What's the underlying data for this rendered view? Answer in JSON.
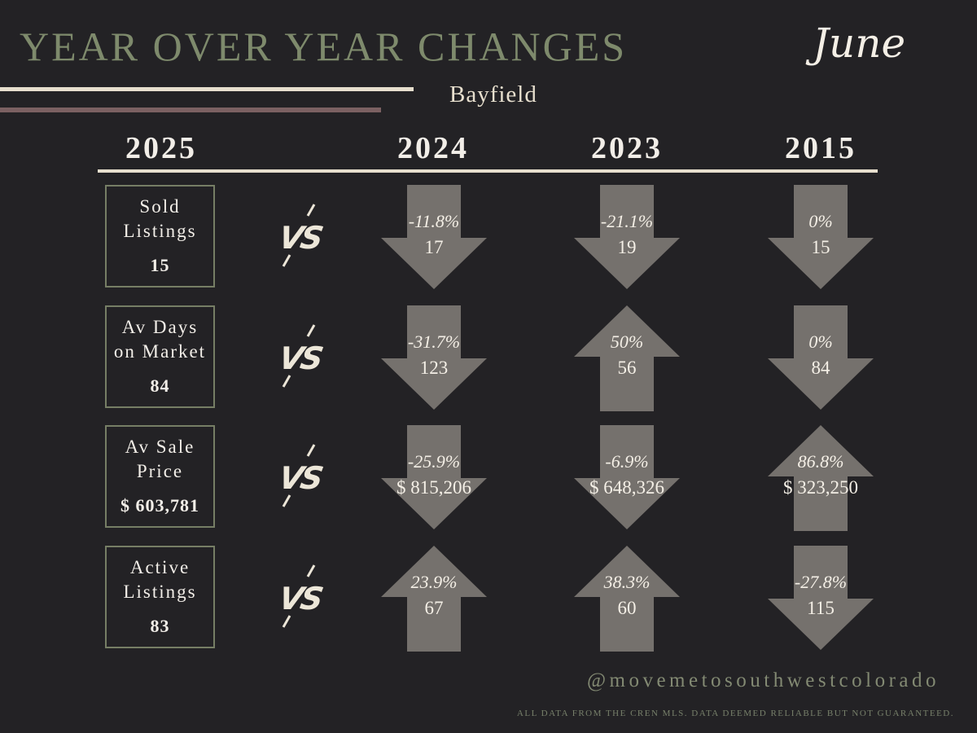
{
  "title": "YEAR OVER YEAR CHANGES",
  "month": "June",
  "location": "Bayfield",
  "colors": {
    "background": "#232225",
    "title": "#7e8a6c",
    "arrow": "#75716d",
    "cream": "#e7dfce",
    "mauve": "#7b6162"
  },
  "years": {
    "current": "2025",
    "comparisons": [
      "2024",
      "2023",
      "2015"
    ]
  },
  "vs_label": "VS",
  "rows": [
    {
      "label_lines": [
        "Sold",
        "Listings"
      ],
      "current_value": "15",
      "comparisons": [
        {
          "year": "2024",
          "change": "-11.8%",
          "value": "17",
          "direction": "down"
        },
        {
          "year": "2023",
          "change": "-21.1%",
          "value": "19",
          "direction": "down"
        },
        {
          "year": "2015",
          "change": "0%",
          "value": "15",
          "direction": "down"
        }
      ]
    },
    {
      "label_lines": [
        "Av Days",
        "on Market"
      ],
      "current_value": "84",
      "comparisons": [
        {
          "year": "2024",
          "change": "-31.7%",
          "value": "123",
          "direction": "down"
        },
        {
          "year": "2023",
          "change": "50%",
          "value": "56",
          "direction": "up"
        },
        {
          "year": "2015",
          "change": "0%",
          "value": "84",
          "direction": "down"
        }
      ]
    },
    {
      "label_lines": [
        "Av Sale",
        "Price"
      ],
      "current_value": "$ 603,781",
      "comparisons": [
        {
          "year": "2024",
          "change": "-25.9%",
          "value": "$ 815,206",
          "direction": "down"
        },
        {
          "year": "2023",
          "change": "-6.9%",
          "value": "$ 648,326",
          "direction": "down"
        },
        {
          "year": "2015",
          "change": "86.8%",
          "value": "$ 323,250",
          "direction": "up"
        }
      ]
    },
    {
      "label_lines": [
        "Active",
        "Listings"
      ],
      "current_value": "83",
      "comparisons": [
        {
          "year": "2024",
          "change": "23.9%",
          "value": "67",
          "direction": "up"
        },
        {
          "year": "2023",
          "change": "38.3%",
          "value": "60",
          "direction": "up"
        },
        {
          "year": "2015",
          "change": "-27.8%",
          "value": "115",
          "direction": "down"
        }
      ]
    }
  ],
  "footer": {
    "handle": "@movemetosouthwestcolorado",
    "disclaimer": "ALL DATA FROM THE CREN MLS. DATA DEEMED RELIABLE BUT NOT GUARANTEED."
  }
}
